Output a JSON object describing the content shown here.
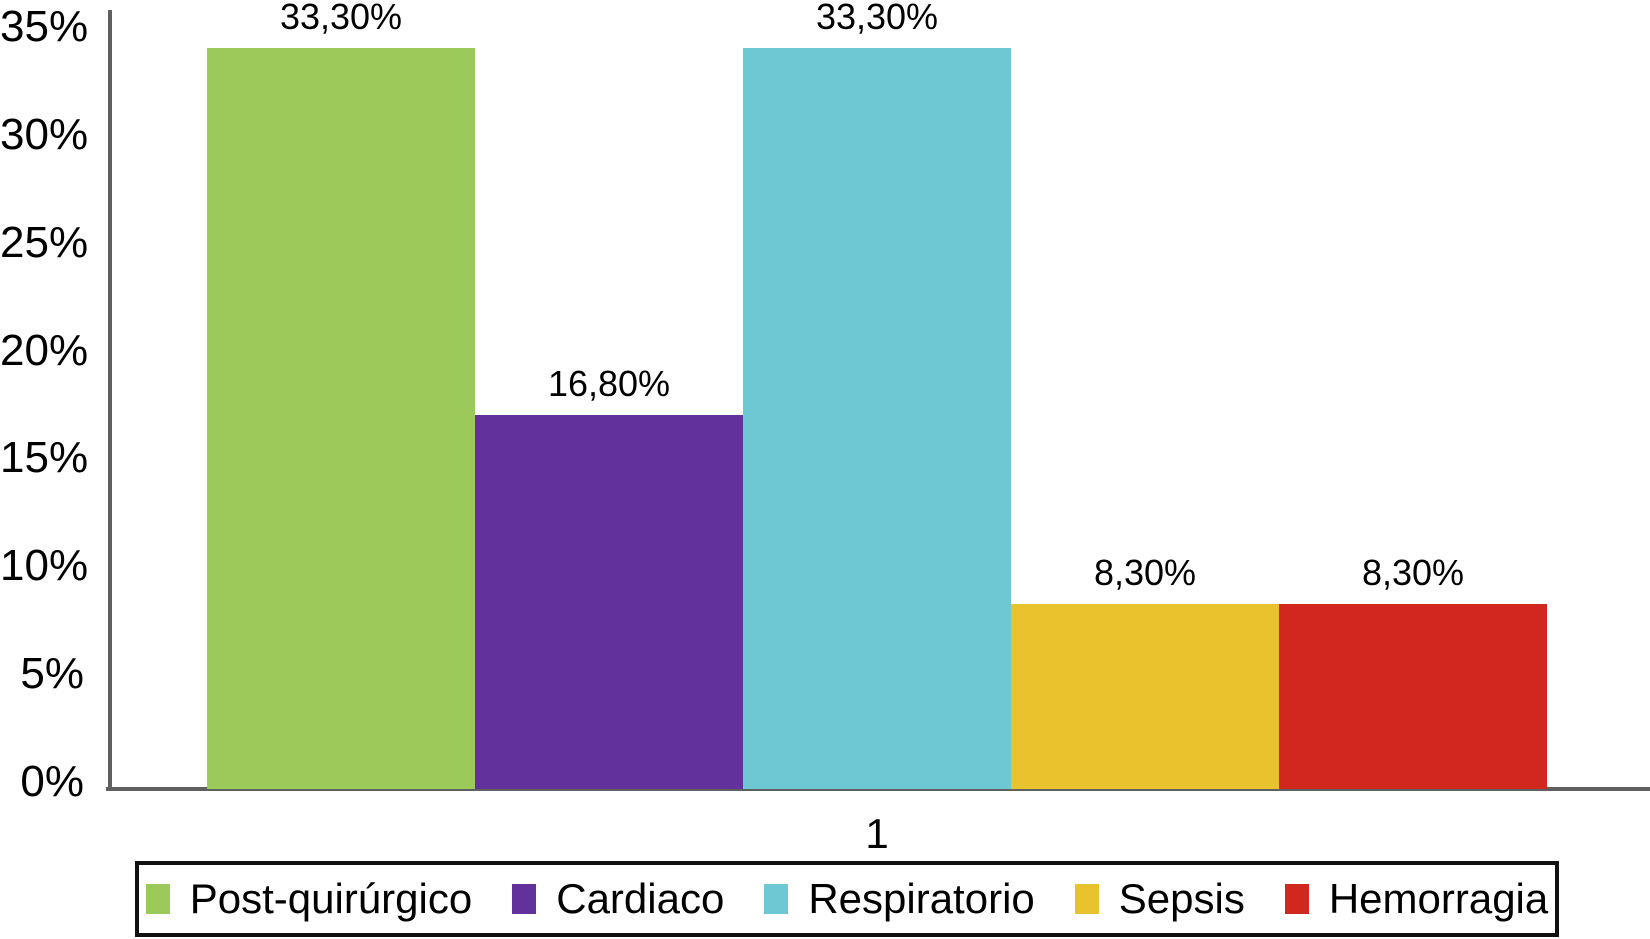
{
  "chart_data": {
    "type": "bar",
    "title": "",
    "categories": [
      "1"
    ],
    "series": [
      {
        "name": "Post-quirúrgico",
        "value": 33.3,
        "label": "33,30%",
        "color": "#9CCA5A"
      },
      {
        "name": "Cardiaco",
        "value": 16.8,
        "label": "16,80%",
        "color": "#63319C"
      },
      {
        "name": "Respiratorio",
        "value": 33.3,
        "label": "33,30%",
        "color": "#6EC8D4"
      },
      {
        "name": "Sepsis",
        "value": 8.3,
        "label": "8,30%",
        "color": "#E8C32D"
      },
      {
        "name": "Hemorragia",
        "value": 8.3,
        "label": "8,30%",
        "color": "#D0281E"
      }
    ],
    "xlabel": "",
    "ylabel": "",
    "ylim": [
      0,
      35
    ],
    "y_axis": {
      "min": 0,
      "max": 35,
      "step": 5,
      "ticks": [
        "35%",
        "30%",
        "25%",
        "20%",
        "15%",
        "10%",
        "5%",
        "0%"
      ]
    },
    "x_axis": {
      "category_label": "1"
    },
    "grid": false,
    "legend_position": "bottom"
  },
  "colors": {
    "axis": "#606060",
    "legend_border": "#111111",
    "background": "#ffffff",
    "text": "#000000"
  }
}
